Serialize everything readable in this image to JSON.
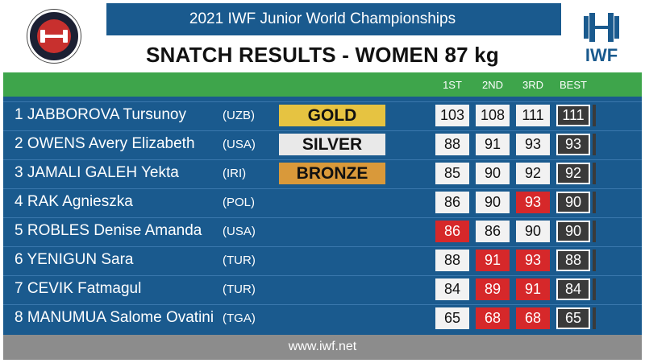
{
  "header": {
    "event_title": "2021 IWF Junior World Championships",
    "subtitle": "SNATCH RESULTS - WOMEN 87 kg",
    "logo_text": "IWF",
    "left_logo": "championship-seal-icon",
    "right_logo": "iwf-barbell-icon"
  },
  "columns": [
    "1ST",
    "2ND",
    "3RD",
    "BEST"
  ],
  "rows": [
    {
      "rank_name": "1 JABBOROVA Tursunoy",
      "nation": "(UZB)",
      "medal": "GOLD",
      "a1": "103",
      "a2": "108",
      "a3": "111",
      "best": "111",
      "fails": []
    },
    {
      "rank_name": "2 OWENS Avery Elizabeth",
      "nation": "(USA)",
      "medal": "SILVER",
      "a1": "88",
      "a2": "91",
      "a3": "93",
      "best": "93",
      "fails": []
    },
    {
      "rank_name": "3 JAMALI GALEH Yekta",
      "nation": "(IRI)",
      "medal": "BRONZE",
      "a1": "85",
      "a2": "90",
      "a3": "92",
      "best": "92",
      "fails": []
    },
    {
      "rank_name": "4 RAK Agnieszka",
      "nation": "(POL)",
      "medal": "",
      "a1": "86",
      "a2": "90",
      "a3": "93",
      "best": "90",
      "fails": [
        3
      ]
    },
    {
      "rank_name": "5 ROBLES Denise Amanda",
      "nation": "(USA)",
      "medal": "",
      "a1": "86",
      "a2": "86",
      "a3": "90",
      "best": "90",
      "fails": [
        1
      ]
    },
    {
      "rank_name": "6 YENIGUN Sara",
      "nation": "(TUR)",
      "medal": "",
      "a1": "88",
      "a2": "91",
      "a3": "93",
      "best": "88",
      "fails": [
        2,
        3
      ]
    },
    {
      "rank_name": "7 CEVIK Fatmagul",
      "nation": "(TUR)",
      "medal": "",
      "a1": "84",
      "a2": "89",
      "a3": "91",
      "best": "84",
      "fails": [
        2,
        3
      ]
    },
    {
      "rank_name": "8 MANUMUA Salome Ovatini",
      "nation": "(TGA)",
      "medal": "",
      "a1": "65",
      "a2": "68",
      "a3": "68",
      "best": "65",
      "fails": [
        2,
        3
      ]
    }
  ],
  "colors": {
    "board_blue": "#1a5a8e",
    "green": "#3ea54b",
    "gold": "#e6c341",
    "silver": "#e9e9e9",
    "bronze": "#d9993a",
    "fail_red": "#d6282a"
  },
  "footer": {
    "url": "www.iwf.net"
  }
}
